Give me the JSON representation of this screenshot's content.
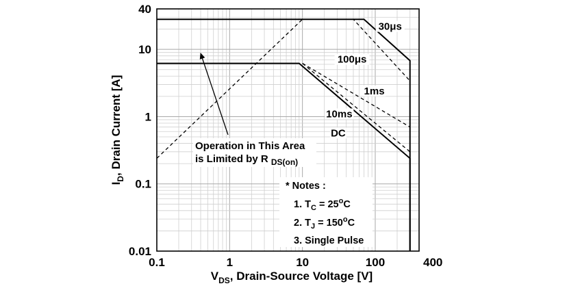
{
  "chart_data": {
    "type": "line",
    "x_scale": "log",
    "y_scale": "log",
    "xlim": [
      0.1,
      400
    ],
    "ylim": [
      0.01,
      40
    ],
    "grid": true,
    "x_ticks": [
      "0.1",
      "1",
      "10",
      "100",
      "400"
    ],
    "y_ticks": [
      "0.01",
      "0.1",
      "1",
      "10",
      "40"
    ],
    "xlabel": {
      "main": "V",
      "sub": "DS",
      "rest": ", Drain-Source Voltage [V]"
    },
    "ylabel": {
      "main": "I",
      "sub": "D",
      "rest": ", Drain Current [A]"
    },
    "series": [
      {
        "name": "30μs",
        "style": "solid",
        "x": [
          0.1,
          70,
          300,
          300
        ],
        "y": [
          28,
          28,
          6.8,
          0.01
        ]
      },
      {
        "name": "100μs",
        "style": "dashed",
        "x": [
          10,
          50,
          300
        ],
        "y": [
          28,
          28,
          3.4
        ]
      },
      {
        "name": "1ms",
        "style": "dashed",
        "x": [
          10,
          300
        ],
        "y": [
          6.2,
          0.7
        ]
      },
      {
        "name": "10ms",
        "style": "dashed",
        "x": [
          10,
          300
        ],
        "y": [
          6.2,
          0.3
        ]
      },
      {
        "name": "DC",
        "style": "solid",
        "x": [
          0.1,
          9,
          300,
          300
        ],
        "y": [
          6.2,
          6.2,
          0.24,
          0.01
        ]
      },
      {
        "name": "R_DS(on) limit",
        "style": "dashed",
        "x": [
          0.1,
          10
        ],
        "y": [
          0.24,
          28
        ]
      }
    ],
    "annotations": {
      "labels": [
        {
          "key": "l30us",
          "text": "30μs",
          "x": 160,
          "y": 20
        },
        {
          "key": "l100us",
          "text": "100μs",
          "x": 48,
          "y": 6.5
        },
        {
          "key": "l1ms",
          "text": "1ms",
          "x": 97,
          "y": 2.2
        },
        {
          "key": "l10ms",
          "text": "10ms",
          "x": 32,
          "y": 1.0
        },
        {
          "key": "ldc",
          "text": "DC",
          "x": 31,
          "y": 0.52
        }
      ],
      "operation_text_line1": "Operation in This Area",
      "operation_text_line2_main": "is Limited by R ",
      "operation_text_line2_sub": "DS(on)",
      "notes_title": "* Notes :",
      "note1": {
        "prefix": "1. T",
        "sub": "C",
        "mid": " = 25",
        "sup": "o",
        "suffix": "C"
      },
      "note2": {
        "prefix": "2. T",
        "sub": "J",
        "mid": " = 150",
        "sup": "o",
        "suffix": "C"
      },
      "note3": "3. Single Pulse"
    }
  }
}
